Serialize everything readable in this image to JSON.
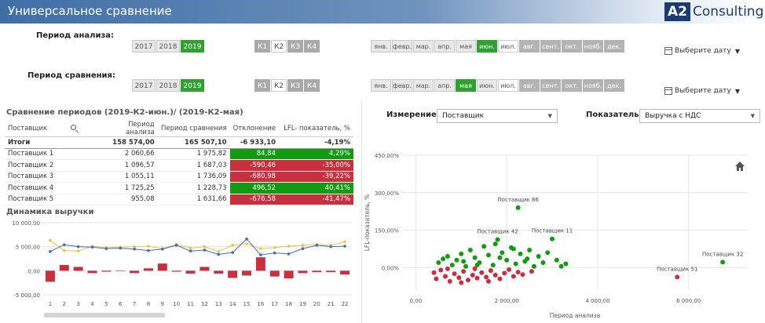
{
  "app": {
    "title": "Универсальное сравнение",
    "logo_a2": "A2",
    "logo_text": "Consulting"
  },
  "filters": {
    "period_label": "Период анализа:",
    "compare_label": "Период сравнения:",
    "years": [
      "2017",
      "2018",
      "2019"
    ],
    "quarters": [
      "К1",
      "К2",
      "К3",
      "К4"
    ],
    "months": [
      "янв.",
      "февр.",
      "мар.",
      "апр.",
      "мая",
      "июн.",
      "июл.",
      "авг.",
      "сент.",
      "окт.",
      "нояб.",
      "дек."
    ],
    "date_placeholder": "Выберите дату"
  },
  "table": {
    "title": "Сравнение периодов (2019-К2-июн.)/ (2019-К2-мая)",
    "headers": [
      "Поставщик",
      "Период анализа",
      "Период сравнения",
      "Отклонение",
      "LFL- показатель, %"
    ],
    "total": [
      "Итоги",
      "158 574,00",
      "165 507,10",
      "-6 933,10",
      "-4,19%"
    ],
    "rows": [
      [
        "Поставщик 1",
        "2 060,66",
        "1 975,82",
        "84,84",
        "4,29%"
      ],
      [
        "Поставщик 2",
        "1 096,57",
        "1 687,03",
        "-590,46",
        "-35,00%"
      ],
      [
        "Поставщик 3",
        "1 055,11",
        "1 736,09",
        "-680,98",
        "-39,22%"
      ],
      [
        "Поставщик 4",
        "1 725,25",
        "1 228,73",
        "496,52",
        "40,41%"
      ],
      [
        "Поставщик 5",
        "955,08",
        "1 631,66",
        "-676,58",
        "-41,47%"
      ]
    ]
  },
  "controls": {
    "dimension_label": "Измерение:",
    "dimension_value": "Поставщик",
    "measure_label": "Показатель:",
    "measure_value": "Выручка с НДС"
  },
  "chart_data": [
    {
      "type": "bar",
      "title": "Динамика выручки",
      "categories": [
        "1",
        "2",
        "3",
        "4",
        "5",
        "6",
        "7",
        "8",
        "9",
        "10",
        "11",
        "12",
        "13",
        "14",
        "15",
        "16",
        "17",
        "18",
        "19",
        "20",
        "21",
        "22"
      ],
      "ylim": [
        -5000,
        10000
      ],
      "yticks": [
        "10 000,00",
        "5 000,00",
        "0,00",
        "-5 000,00"
      ],
      "series": [
        {
          "values": [
            -2300,
            1200,
            800,
            -500,
            -200,
            -100,
            -500,
            500,
            1500,
            -200,
            -600,
            800,
            -600,
            -1500,
            -1000,
            2800,
            -1200,
            -1600,
            -500,
            -300,
            -300,
            -800
          ],
          "color": "#c9303f"
        },
        {
          "values": [
            4000,
            5400,
            5000,
            4900,
            4600,
            4700,
            4500,
            4200,
            4500,
            5300,
            4100,
            4300,
            3400,
            3800,
            6600,
            3300,
            3700,
            3500,
            4600,
            5300,
            5000,
            5100
          ],
          "color": "#3f6fb6"
        },
        {
          "values": [
            6300,
            4200,
            4100,
            5100,
            4800,
            4900,
            5000,
            5100,
            4600,
            5500,
            4700,
            5000,
            4000,
            5300,
            5600,
            4600,
            4800,
            5100,
            5300,
            5500,
            5300,
            6000
          ],
          "color": "#e8c64a"
        }
      ],
      "grid": true
    },
    {
      "type": "scatter",
      "xlabel": "Период анализа",
      "ylabel": "LFL-показатель, %",
      "xlim": [
        -300,
        7300
      ],
      "ylim": [
        -90,
        450
      ],
      "xticks": [
        "0,00",
        "2 000,00",
        "4 000,00",
        "6 000,00"
      ],
      "yticks": [
        "450,00%",
        "300,00%",
        "150,00%",
        "0,00%"
      ],
      "labels": [
        "Поставщик 86",
        "Поставщик 42",
        "Поставщик 11",
        "Поставщик 51",
        "Поставщик 32"
      ],
      "points": [
        {
          "x": 2250,
          "y": 240,
          "c": "g",
          "label": 0
        },
        {
          "x": 1800,
          "y": 112,
          "c": "g",
          "label": 1
        },
        {
          "x": 3000,
          "y": 115,
          "c": "g",
          "label": 2
        },
        {
          "x": 5750,
          "y": -38,
          "c": "r",
          "label": 3
        },
        {
          "x": 6750,
          "y": 22,
          "c": "g",
          "label": 4
        },
        {
          "x": 500,
          "y": 20,
          "c": "g"
        },
        {
          "x": 600,
          "y": 35,
          "c": "g"
        },
        {
          "x": 700,
          "y": 45,
          "c": "g"
        },
        {
          "x": 800,
          "y": 10,
          "c": "g"
        },
        {
          "x": 900,
          "y": 30,
          "c": "g"
        },
        {
          "x": 1000,
          "y": 55,
          "c": "g"
        },
        {
          "x": 1100,
          "y": 5,
          "c": "g"
        },
        {
          "x": 1200,
          "y": 70,
          "c": "g"
        },
        {
          "x": 1300,
          "y": 40,
          "c": "g"
        },
        {
          "x": 1400,
          "y": 20,
          "c": "g"
        },
        {
          "x": 1500,
          "y": 85,
          "c": "g"
        },
        {
          "x": 1600,
          "y": 50,
          "c": "g"
        },
        {
          "x": 1700,
          "y": 10,
          "c": "g"
        },
        {
          "x": 1750,
          "y": 95,
          "c": "g"
        },
        {
          "x": 1900,
          "y": 60,
          "c": "g"
        },
        {
          "x": 2000,
          "y": 30,
          "c": "g"
        },
        {
          "x": 2100,
          "y": 80,
          "c": "g"
        },
        {
          "x": 2200,
          "y": 15,
          "c": "g"
        },
        {
          "x": 2300,
          "y": 55,
          "c": "g"
        },
        {
          "x": 2400,
          "y": 25,
          "c": "g"
        },
        {
          "x": 2500,
          "y": 70,
          "c": "g"
        },
        {
          "x": 2600,
          "y": 5,
          "c": "g"
        },
        {
          "x": 2700,
          "y": 45,
          "c": "g"
        },
        {
          "x": 2800,
          "y": 20,
          "c": "g"
        },
        {
          "x": 2900,
          "y": 60,
          "c": "g"
        },
        {
          "x": 3100,
          "y": 30,
          "c": "g"
        },
        {
          "x": 3300,
          "y": 15,
          "c": "g"
        },
        {
          "x": 1050,
          "y": 25,
          "c": "g"
        },
        {
          "x": 1350,
          "y": 10,
          "c": "g"
        },
        {
          "x": 1850,
          "y": 40,
          "c": "g"
        },
        {
          "x": 2150,
          "y": 75,
          "c": "g"
        },
        {
          "x": 2450,
          "y": 35,
          "c": "g"
        },
        {
          "x": 3200,
          "y": 5,
          "c": "g"
        },
        {
          "x": 400,
          "y": -20,
          "c": "r"
        },
        {
          "x": 450,
          "y": -45,
          "c": "r"
        },
        {
          "x": 550,
          "y": -10,
          "c": "r"
        },
        {
          "x": 650,
          "y": -35,
          "c": "r"
        },
        {
          "x": 750,
          "y": -55,
          "c": "r"
        },
        {
          "x": 850,
          "y": -25,
          "c": "r"
        },
        {
          "x": 950,
          "y": -40,
          "c": "r"
        },
        {
          "x": 1050,
          "y": -15,
          "c": "r"
        },
        {
          "x": 1150,
          "y": -50,
          "c": "r"
        },
        {
          "x": 1250,
          "y": -30,
          "c": "r"
        },
        {
          "x": 1350,
          "y": -42,
          "c": "r"
        },
        {
          "x": 1450,
          "y": -20,
          "c": "r"
        },
        {
          "x": 1550,
          "y": -38,
          "c": "r"
        },
        {
          "x": 1650,
          "y": -12,
          "c": "r"
        },
        {
          "x": 1750,
          "y": -30,
          "c": "r"
        },
        {
          "x": 1850,
          "y": -45,
          "c": "r"
        },
        {
          "x": 1950,
          "y": -22,
          "c": "r"
        },
        {
          "x": 2050,
          "y": -8,
          "c": "r"
        },
        {
          "x": 2150,
          "y": -35,
          "c": "r"
        },
        {
          "x": 2250,
          "y": -18,
          "c": "r"
        },
        {
          "x": 2350,
          "y": -28,
          "c": "r"
        },
        {
          "x": 2550,
          "y": -15,
          "c": "r"
        },
        {
          "x": 700,
          "y": -5,
          "c": "r"
        },
        {
          "x": 1000,
          "y": -60,
          "c": "r"
        },
        {
          "x": 1300,
          "y": -5,
          "c": "r"
        },
        {
          "x": 1600,
          "y": -55,
          "c": "r"
        }
      ]
    }
  ],
  "colors": {
    "green": "#139a13",
    "red": "#c9303f",
    "accent": "#2fa12f"
  },
  "icons": {
    "home": "home-icon",
    "calendar": "calendar-icon",
    "search": "search-icon"
  }
}
